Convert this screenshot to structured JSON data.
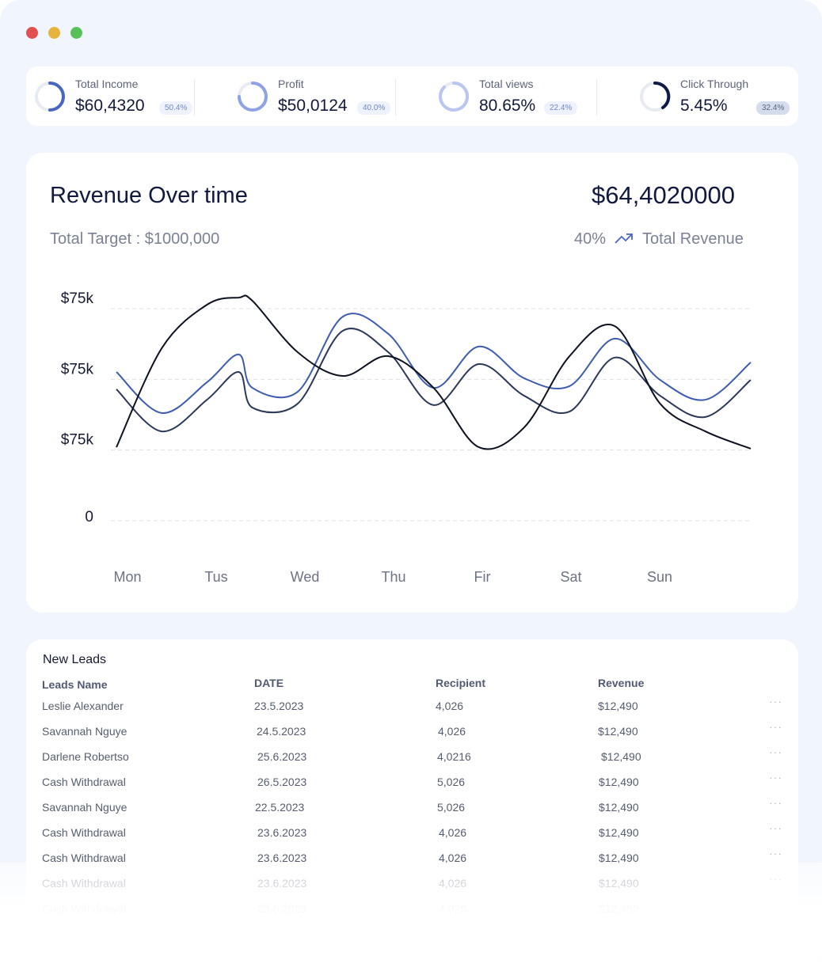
{
  "stats": [
    {
      "label": "Total Income",
      "value": "$60,4320",
      "badge": "50.4%"
    },
    {
      "label": "Profit",
      "value": "$50,0124",
      "badge": "40.0%"
    },
    {
      "label": "Total views",
      "value": "80.65%",
      "badge": "22.4%"
    },
    {
      "label": "Click Through",
      "value": "5.45%",
      "badge": "32.4%"
    }
  ],
  "chart_data": {
    "type": "line",
    "title": "Revenue Over time",
    "headline": "$64,4020000",
    "subtitle": "Total Target : $1000,000",
    "change": "40%",
    "change_label": "Total Revenue",
    "categories": [
      "Mon",
      "Tus",
      "Wed",
      "Thu",
      "Fir",
      "Sat",
      "Sun"
    ],
    "x": [
      0,
      0.5,
      1,
      1.35,
      1.5,
      2,
      2.5,
      3,
      3.5,
      4,
      4.5,
      5,
      5.5,
      6,
      6.5,
      7
    ],
    "xlim": [
      0,
      7
    ],
    "ylim": [
      0,
      75
    ],
    "ytick_labels": [
      "$75k",
      "$75k",
      "$75k",
      "0"
    ],
    "grid": true,
    "series": [
      {
        "color": "#3d5cae",
        "values": [
          52.6,
          38.1,
          49.0,
          58.8,
          47.0,
          45.6,
          72.2,
          66.1,
          47.0,
          61.6,
          50.4,
          47.6,
          64.4,
          49.8,
          42.8,
          56.0
        ]
      },
      {
        "color": "#2b3858",
        "values": [
          46.5,
          31.6,
          42.8,
          52.6,
          40.0,
          41.4,
          67.2,
          59.6,
          40.9,
          55.4,
          44.2,
          38.6,
          57.7,
          44.2,
          36.7,
          49.8
        ]
      },
      {
        "color": "#0d1220",
        "values": [
          26.0,
          61.0,
          76.4,
          78.9,
          77.8,
          59.6,
          51.2,
          58.2,
          47.0,
          26.0,
          33.0,
          58.2,
          68.8,
          41.4,
          31.6,
          25.5
        ]
      }
    ]
  },
  "table": {
    "title": "New Leads",
    "columns": [
      "Leads Name",
      "DATE",
      "Recipient",
      "Revenue"
    ],
    "rows": [
      [
        "Leslie Alexander",
        "23.5.2023",
        "4,026",
        "$12,490"
      ],
      [
        "Savannah Nguye",
        "24.5.2023",
        "4,026",
        "$12,490"
      ],
      [
        "Darlene Robertso",
        "25.6.2023",
        "4,0216",
        "$12,490"
      ],
      [
        "Cash Withdrawal",
        "26.5.2023",
        "5,026",
        "$12,490"
      ],
      [
        "Savannah Nguye",
        "22.5.2023",
        "5,026",
        "$12,490"
      ],
      [
        "Cash Withdrawal",
        "23.6.2023",
        "4,026",
        "$12,490"
      ],
      [
        "Cash Withdrawal",
        "23.6.2023",
        "4,026",
        "$12,490"
      ],
      [
        "Cash Withdrawal",
        "23.6.2023",
        "4,026",
        "$12,490"
      ],
      [
        "Cash Withdrawal",
        "23.6.2023",
        "4,026",
        "$12,490"
      ]
    ]
  }
}
